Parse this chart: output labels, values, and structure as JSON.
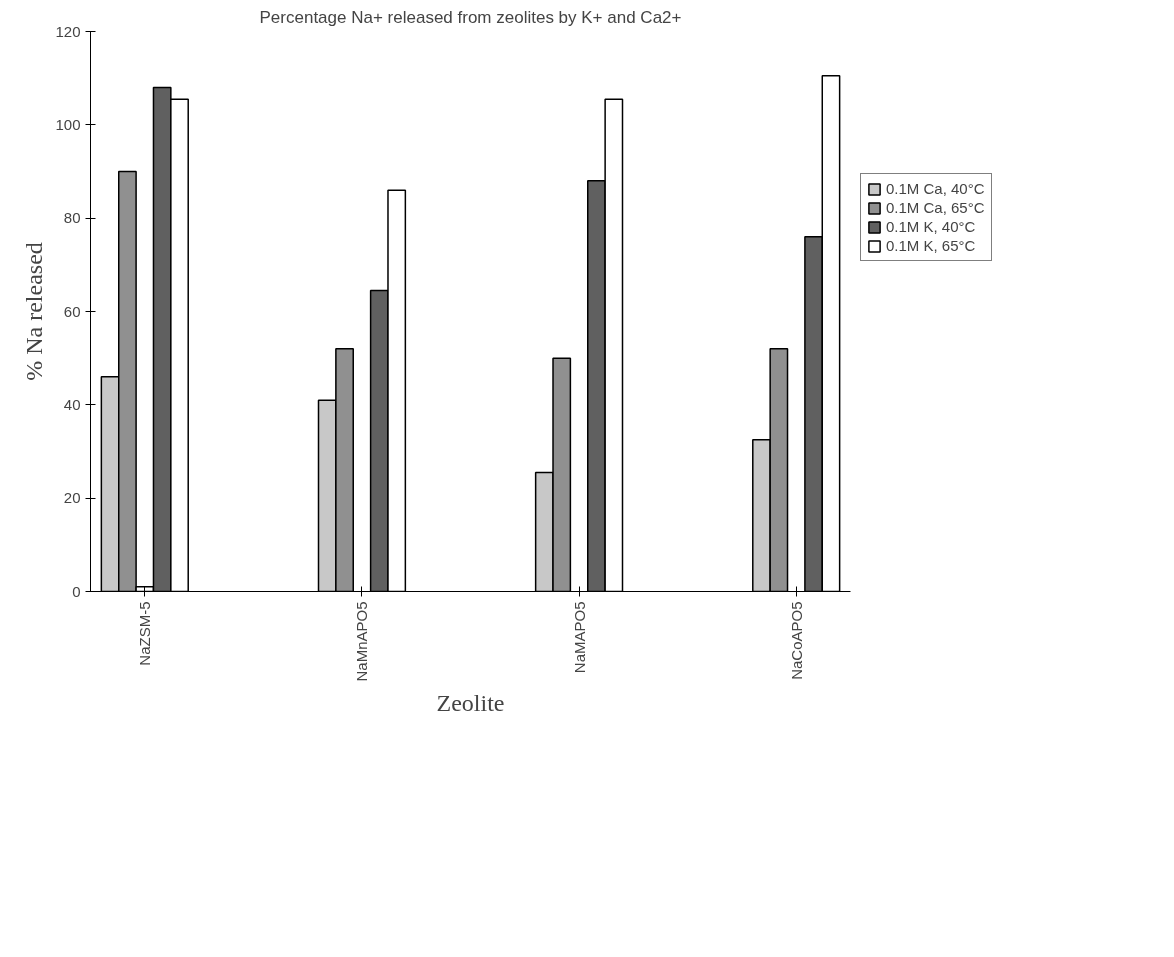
{
  "chart_data": {
    "type": "bar",
    "title": "Percentage Na+ released from zeolites by K+ and Ca2+",
    "xlabel": "Zeolite",
    "ylabel": "% Na released",
    "categories": [
      "NaZSM-5",
      "NaMnAPO5",
      "NaMAPO5",
      "NaCoAPO5"
    ],
    "series": [
      {
        "name": "0.1M Ca, 40°C",
        "color": "#c8c8c8",
        "values": [
          46,
          41,
          25.5,
          32.5
        ]
      },
      {
        "name": "0.1M Ca, 65°C",
        "color": "#909090",
        "values": [
          90,
          52,
          50,
          52
        ]
      },
      {
        "color": "#ffffff",
        "values": [
          1,
          null,
          null,
          null
        ]
      },
      {
        "name": "0.1M K, 40°C",
        "color": "#606060",
        "values": [
          108,
          64.5,
          88,
          76
        ]
      },
      {
        "name": "0.1M K, 65°C",
        "color": "#ffffff",
        "values": [
          105.5,
          86,
          105.5,
          110.5
        ]
      }
    ],
    "ylim": [
      0,
      120
    ],
    "yticks": [
      0,
      20,
      40,
      60,
      80,
      100,
      120
    ],
    "grid": false,
    "legend": "right"
  }
}
